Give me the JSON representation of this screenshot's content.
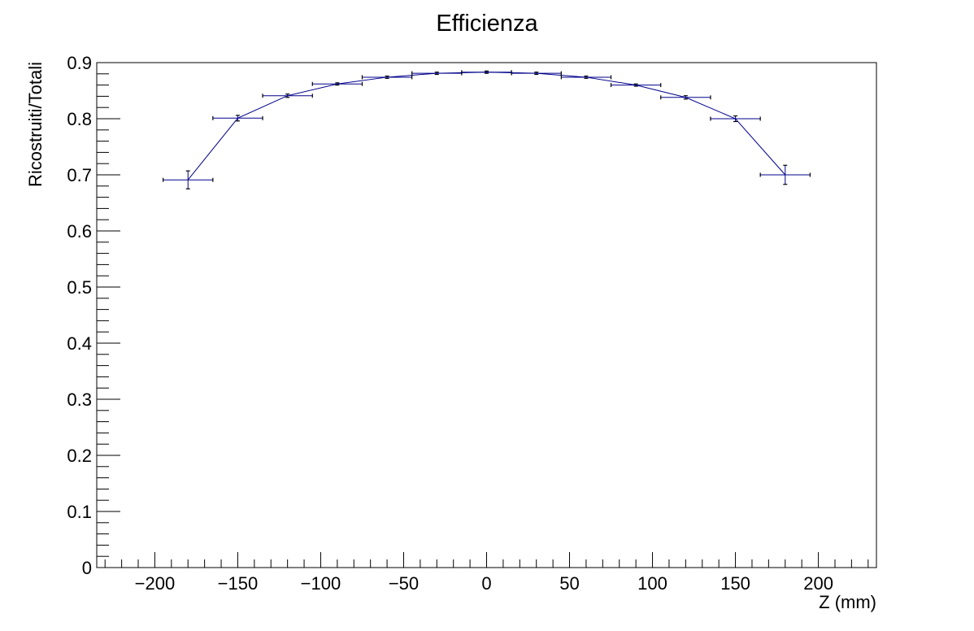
{
  "chart_data": {
    "type": "scatter",
    "title": "Efficienza",
    "xlabel": "Z (mm)",
    "ylabel": "Ricostruiti/Totali",
    "xlim": [
      -235,
      235
    ],
    "ylim": [
      0,
      0.9
    ],
    "xticks": [
      -200,
      -150,
      -100,
      -50,
      0,
      50,
      100,
      150,
      200
    ],
    "xtick_labels": [
      "−200",
      "−150",
      "−100",
      "−50",
      "0",
      "50",
      "100",
      "150",
      "200"
    ],
    "yticks": [
      0,
      0.1,
      0.2,
      0.3,
      0.4,
      0.5,
      0.6,
      0.7,
      0.8,
      0.9
    ],
    "ytick_labels": [
      "0",
      "0.1",
      "0.2",
      "0.3",
      "0.4",
      "0.5",
      "0.6",
      "0.7",
      "0.8",
      "0.9"
    ],
    "grid": false,
    "series": [
      {
        "color": "#00008b",
        "connected": true,
        "points": [
          {
            "x": -180,
            "y": 0.691,
            "xerr": 15,
            "yerr": 0.016
          },
          {
            "x": -150,
            "y": 0.801,
            "xerr": 15,
            "yerr": 0.005
          },
          {
            "x": -120,
            "y": 0.841,
            "xerr": 15,
            "yerr": 0.003
          },
          {
            "x": -90,
            "y": 0.862,
            "xerr": 15,
            "yerr": 0.002
          },
          {
            "x": -60,
            "y": 0.874,
            "xerr": 15,
            "yerr": 0.002
          },
          {
            "x": -30,
            "y": 0.881,
            "xerr": 15,
            "yerr": 0.002
          },
          {
            "x": 0,
            "y": 0.883,
            "xerr": 15,
            "yerr": 0.002
          },
          {
            "x": 30,
            "y": 0.881,
            "xerr": 15,
            "yerr": 0.002
          },
          {
            "x": 60,
            "y": 0.874,
            "xerr": 15,
            "yerr": 0.002
          },
          {
            "x": 90,
            "y": 0.86,
            "xerr": 15,
            "yerr": 0.002
          },
          {
            "x": 120,
            "y": 0.838,
            "xerr": 15,
            "yerr": 0.003
          },
          {
            "x": 150,
            "y": 0.8,
            "xerr": 15,
            "yerr": 0.005
          },
          {
            "x": 180,
            "y": 0.7,
            "xerr": 15,
            "yerr": 0.017
          }
        ]
      }
    ]
  }
}
